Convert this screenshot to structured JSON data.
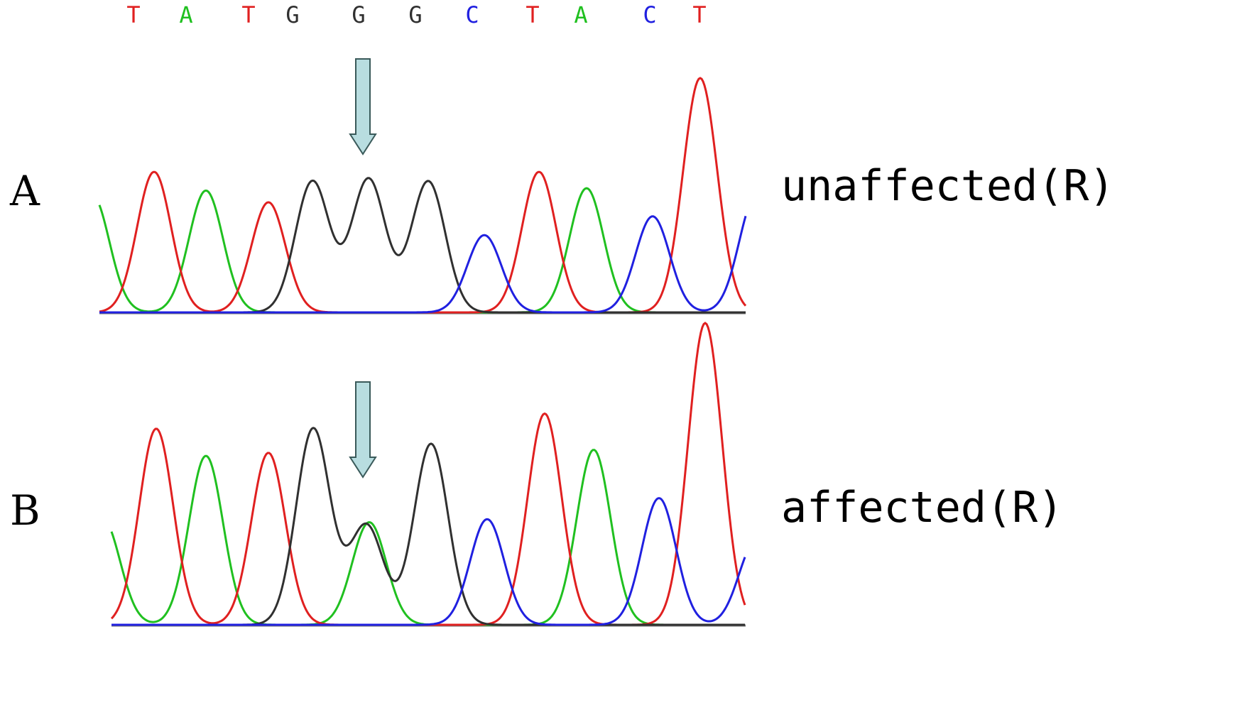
{
  "sequence": {
    "bases": [
      "T",
      "A",
      "T",
      "G",
      "G",
      "G",
      "C",
      "T",
      "A",
      "C",
      "T"
    ],
    "colors": {
      "T": "#e02020",
      "A": "#20c020",
      "G": "#303030",
      "C": "#2020e0"
    }
  },
  "panels": [
    {
      "letter": "A",
      "label": "unaffected(R)",
      "peaks": [
        {
          "base": "A",
          "height": 0.5
        },
        {
          "base": "T",
          "height": 0.6
        },
        {
          "base": "A",
          "height": 0.52
        },
        {
          "base": "T",
          "height": 0.47
        },
        {
          "base": "G",
          "height": 0.56
        },
        {
          "base": "G",
          "height": 0.57
        },
        {
          "base": "G",
          "height": 0.56
        },
        {
          "base": "C",
          "height": 0.33
        },
        {
          "base": "T",
          "height": 0.6
        },
        {
          "base": "A",
          "height": 0.53
        },
        {
          "base": "C",
          "height": 0.41
        },
        {
          "base": "T",
          "height": 1.0
        },
        {
          "base": "C",
          "height": 0.5
        }
      ]
    },
    {
      "letter": "B",
      "label": "affected(R)",
      "peaks": [
        {
          "base": "A",
          "height": 0.35
        },
        {
          "base": "T",
          "height": 0.65
        },
        {
          "base": "A",
          "height": 0.56
        },
        {
          "base": "T",
          "height": 0.57
        },
        {
          "base": "G",
          "height": 0.65
        },
        {
          "base": "G",
          "height": 0.33
        },
        {
          "base": "A",
          "height": 0.34
        },
        {
          "base": "G",
          "height": 0.6
        },
        {
          "base": "C",
          "height": 0.35
        },
        {
          "base": "T",
          "height": 0.7
        },
        {
          "base": "A",
          "height": 0.58
        },
        {
          "base": "C",
          "height": 0.42
        },
        {
          "base": "T",
          "height": 1.0
        },
        {
          "base": "C",
          "height": 0.28
        }
      ]
    }
  ],
  "arrow_color": "#b8dde0"
}
